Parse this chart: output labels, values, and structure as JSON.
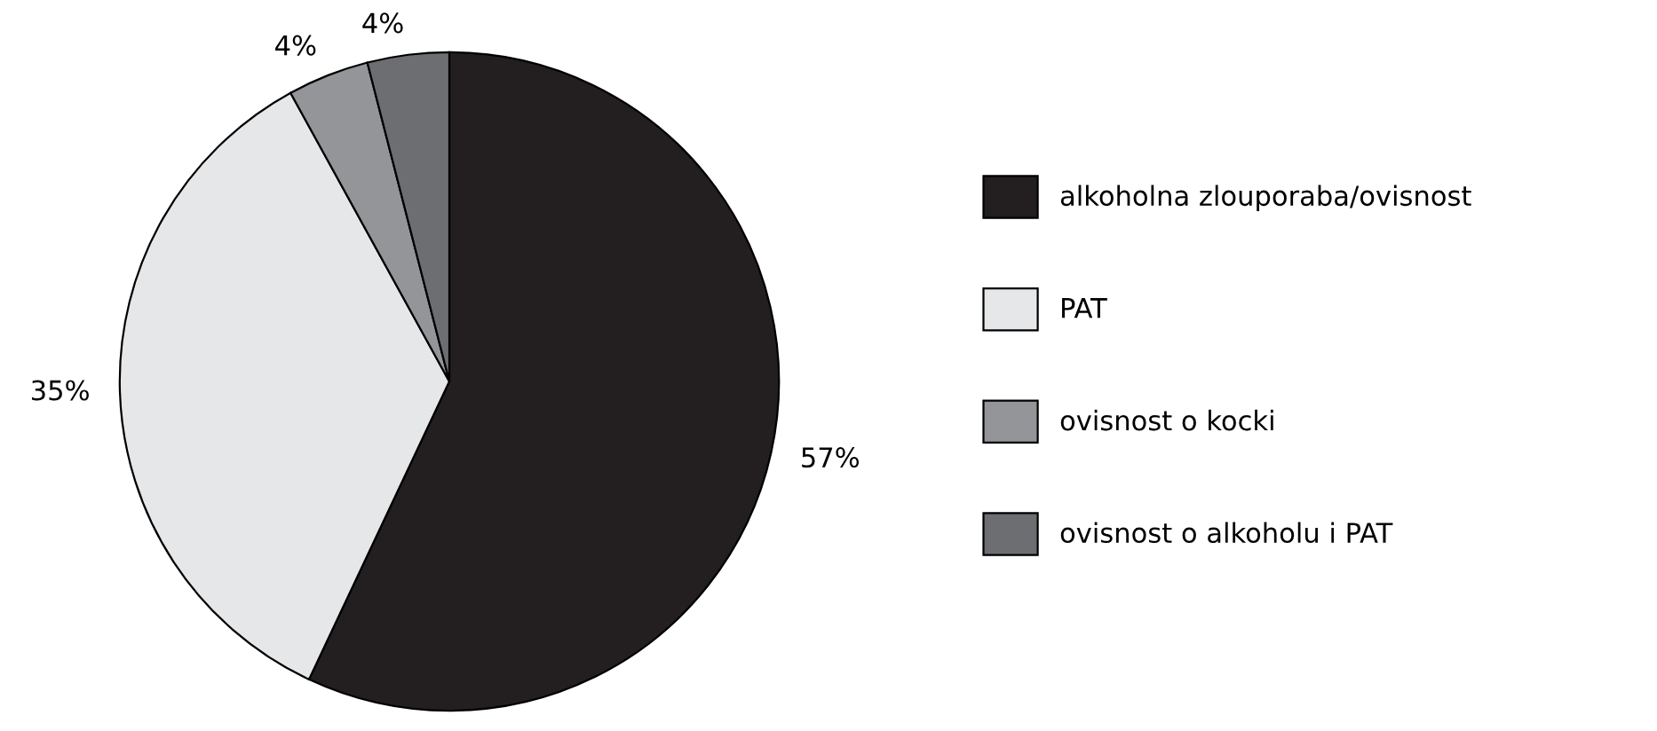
{
  "chart_data": {
    "type": "pie",
    "categories": [
      "alkoholna zlouporaba/ovisnost",
      "PAT",
      "ovisnost o kocki",
      "ovisnost o alkoholu i PAT"
    ],
    "values": [
      57,
      35,
      4,
      4
    ],
    "value_labels": [
      "57%",
      "35%",
      "4%",
      "4%"
    ],
    "colors": [
      "#231f20",
      "#e6e7e8",
      "#939598",
      "#6d6e71"
    ],
    "legend": "right"
  }
}
